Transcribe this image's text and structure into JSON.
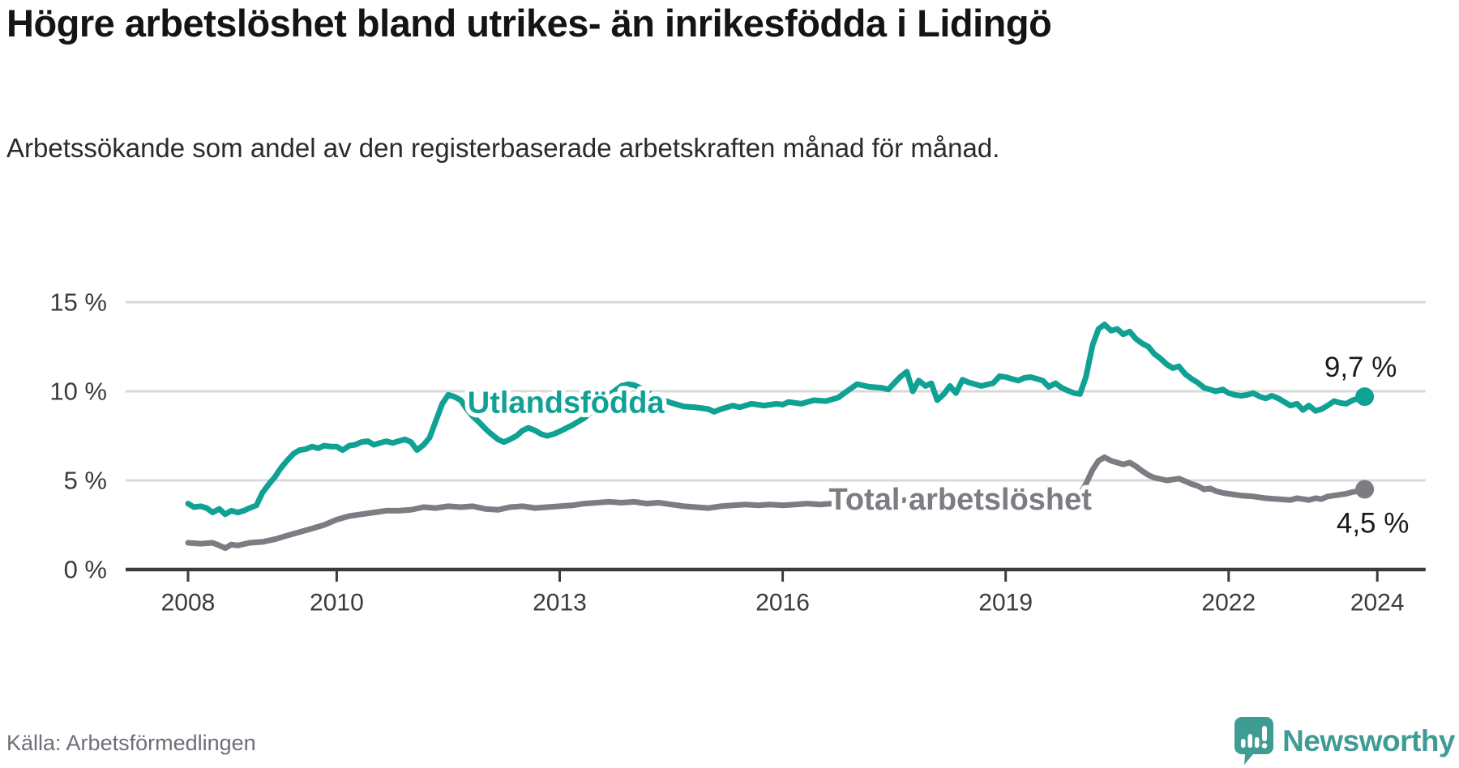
{
  "header": {
    "title": "Högre arbetslöshet bland utrikes- än inrikesfödda i Lidingö",
    "subtitle": "Arbetssökande som andel av den registerbaserade arbetskraften månad för månad."
  },
  "footer": {
    "source": "Källa: Arbetsförmedlingen",
    "brand": "Newsworthy"
  },
  "colors": {
    "teal": "#10a195",
    "gray": "#7c7c83",
    "axis": "#3b3b3b",
    "grid": "#d9d9d9",
    "tick_text": "#3b3b3b",
    "value_text": "#1a1a1a",
    "logo": "#3f9c95"
  },
  "chart_data": {
    "type": "line",
    "xlabel": "",
    "ylabel": "",
    "x_ticks": [
      2008,
      2010,
      2013,
      2016,
      2019,
      2022,
      2024
    ],
    "y_ticks": [
      0,
      5,
      10,
      15
    ],
    "y_tick_suffix": " %",
    "xlim": [
      2007.16,
      2024.65
    ],
    "ylim": [
      0,
      18.3
    ],
    "grid": "horizontal",
    "legend_position": "inline-labels",
    "series": [
      {
        "name": "Utlandsfödda",
        "color_key": "teal",
        "end_label": "9,7 %",
        "end_label_dx": -5,
        "end_label_dy": -36,
        "points": [
          [
            2008.0,
            3.7
          ],
          [
            2008.08,
            3.5
          ],
          [
            2008.17,
            3.55
          ],
          [
            2008.25,
            3.45
          ],
          [
            2008.33,
            3.2
          ],
          [
            2008.42,
            3.4
          ],
          [
            2008.5,
            3.1
          ],
          [
            2008.58,
            3.3
          ],
          [
            2008.67,
            3.2
          ],
          [
            2008.75,
            3.3
          ],
          [
            2008.83,
            3.45
          ],
          [
            2008.92,
            3.6
          ],
          [
            2009.0,
            4.3
          ],
          [
            2009.08,
            4.75
          ],
          [
            2009.17,
            5.2
          ],
          [
            2009.25,
            5.7
          ],
          [
            2009.33,
            6.1
          ],
          [
            2009.42,
            6.5
          ],
          [
            2009.5,
            6.7
          ],
          [
            2009.58,
            6.75
          ],
          [
            2009.67,
            6.9
          ],
          [
            2009.75,
            6.8
          ],
          [
            2009.83,
            6.95
          ],
          [
            2009.92,
            6.9
          ],
          [
            2010.0,
            6.9
          ],
          [
            2010.08,
            6.7
          ],
          [
            2010.17,
            6.95
          ],
          [
            2010.25,
            7.0
          ],
          [
            2010.33,
            7.15
          ],
          [
            2010.42,
            7.2
          ],
          [
            2010.5,
            7.0
          ],
          [
            2010.58,
            7.1
          ],
          [
            2010.67,
            7.2
          ],
          [
            2010.75,
            7.1
          ],
          [
            2010.83,
            7.2
          ],
          [
            2010.92,
            7.3
          ],
          [
            2011.0,
            7.15
          ],
          [
            2011.08,
            6.7
          ],
          [
            2011.17,
            7.0
          ],
          [
            2011.25,
            7.4
          ],
          [
            2011.33,
            8.3
          ],
          [
            2011.42,
            9.3
          ],
          [
            2011.5,
            9.8
          ],
          [
            2011.58,
            9.7
          ],
          [
            2011.67,
            9.5
          ],
          [
            2011.75,
            9.0
          ],
          [
            2011.83,
            8.6
          ],
          [
            2011.92,
            8.25
          ],
          [
            2012.0,
            7.9
          ],
          [
            2012.08,
            7.6
          ],
          [
            2012.17,
            7.3
          ],
          [
            2012.25,
            7.15
          ],
          [
            2012.33,
            7.3
          ],
          [
            2012.42,
            7.5
          ],
          [
            2012.5,
            7.8
          ],
          [
            2012.58,
            7.95
          ],
          [
            2012.67,
            7.8
          ],
          [
            2012.75,
            7.6
          ],
          [
            2012.83,
            7.5
          ],
          [
            2012.92,
            7.6
          ],
          [
            2013.0,
            7.75
          ],
          [
            2013.17,
            8.1
          ],
          [
            2013.33,
            8.5
          ],
          [
            2013.5,
            9.1
          ],
          [
            2013.67,
            9.8
          ],
          [
            2013.83,
            10.3
          ],
          [
            2013.92,
            10.4
          ],
          [
            2014.0,
            10.35
          ],
          [
            2014.08,
            10.2
          ],
          [
            2014.17,
            9.95
          ],
          [
            2014.33,
            9.6
          ],
          [
            2014.5,
            9.35
          ],
          [
            2014.67,
            9.15
          ],
          [
            2014.83,
            9.1
          ],
          [
            2015.0,
            9.0
          ],
          [
            2015.08,
            8.85
          ],
          [
            2015.17,
            9.0
          ],
          [
            2015.33,
            9.2
          ],
          [
            2015.42,
            9.1
          ],
          [
            2015.58,
            9.3
          ],
          [
            2015.75,
            9.2
          ],
          [
            2015.92,
            9.3
          ],
          [
            2016.0,
            9.25
          ],
          [
            2016.08,
            9.4
          ],
          [
            2016.25,
            9.3
          ],
          [
            2016.42,
            9.5
          ],
          [
            2016.58,
            9.45
          ],
          [
            2016.75,
            9.65
          ],
          [
            2016.83,
            9.9
          ],
          [
            2017.0,
            10.4
          ],
          [
            2017.17,
            10.25
          ],
          [
            2017.33,
            10.2
          ],
          [
            2017.42,
            10.1
          ],
          [
            2017.58,
            10.8
          ],
          [
            2017.67,
            11.1
          ],
          [
            2017.75,
            10.0
          ],
          [
            2017.83,
            10.6
          ],
          [
            2017.92,
            10.3
          ],
          [
            2018.0,
            10.45
          ],
          [
            2018.08,
            9.5
          ],
          [
            2018.17,
            9.85
          ],
          [
            2018.25,
            10.3
          ],
          [
            2018.33,
            9.9
          ],
          [
            2018.42,
            10.65
          ],
          [
            2018.5,
            10.5
          ],
          [
            2018.67,
            10.3
          ],
          [
            2018.83,
            10.45
          ],
          [
            2018.92,
            10.85
          ],
          [
            2019.0,
            10.8
          ],
          [
            2019.08,
            10.7
          ],
          [
            2019.17,
            10.6
          ],
          [
            2019.25,
            10.75
          ],
          [
            2019.33,
            10.8
          ],
          [
            2019.42,
            10.7
          ],
          [
            2019.5,
            10.6
          ],
          [
            2019.58,
            10.25
          ],
          [
            2019.67,
            10.45
          ],
          [
            2019.75,
            10.2
          ],
          [
            2019.83,
            10.05
          ],
          [
            2019.92,
            9.9
          ],
          [
            2020.0,
            9.85
          ],
          [
            2020.08,
            10.8
          ],
          [
            2020.17,
            12.6
          ],
          [
            2020.25,
            13.5
          ],
          [
            2020.33,
            13.75
          ],
          [
            2020.42,
            13.4
          ],
          [
            2020.5,
            13.5
          ],
          [
            2020.58,
            13.2
          ],
          [
            2020.67,
            13.35
          ],
          [
            2020.75,
            12.95
          ],
          [
            2020.83,
            12.7
          ],
          [
            2020.92,
            12.5
          ],
          [
            2021.0,
            12.1
          ],
          [
            2021.08,
            11.85
          ],
          [
            2021.17,
            11.5
          ],
          [
            2021.25,
            11.3
          ],
          [
            2021.33,
            11.4
          ],
          [
            2021.42,
            10.95
          ],
          [
            2021.5,
            10.7
          ],
          [
            2021.58,
            10.5
          ],
          [
            2021.67,
            10.2
          ],
          [
            2021.75,
            10.1
          ],
          [
            2021.83,
            10.0
          ],
          [
            2021.92,
            10.1
          ],
          [
            2022.0,
            9.9
          ],
          [
            2022.08,
            9.8
          ],
          [
            2022.17,
            9.75
          ],
          [
            2022.25,
            9.8
          ],
          [
            2022.33,
            9.9
          ],
          [
            2022.42,
            9.7
          ],
          [
            2022.5,
            9.6
          ],
          [
            2022.58,
            9.75
          ],
          [
            2022.67,
            9.6
          ],
          [
            2022.75,
            9.4
          ],
          [
            2022.83,
            9.2
          ],
          [
            2022.92,
            9.3
          ],
          [
            2023.0,
            8.95
          ],
          [
            2023.08,
            9.2
          ],
          [
            2023.17,
            8.9
          ],
          [
            2023.25,
            9.0
          ],
          [
            2023.33,
            9.2
          ],
          [
            2023.42,
            9.45
          ],
          [
            2023.5,
            9.35
          ],
          [
            2023.58,
            9.3
          ],
          [
            2023.67,
            9.5
          ],
          [
            2023.75,
            9.6
          ],
          [
            2023.83,
            9.7
          ]
        ]
      },
      {
        "name": "Total arbetslöshet",
        "color_key": "gray",
        "end_label": "4,5 %",
        "end_label_dx": 10,
        "end_label_dy": 42,
        "points": [
          [
            2008.0,
            1.5
          ],
          [
            2008.17,
            1.45
          ],
          [
            2008.33,
            1.5
          ],
          [
            2008.42,
            1.35
          ],
          [
            2008.5,
            1.2
          ],
          [
            2008.58,
            1.4
          ],
          [
            2008.67,
            1.35
          ],
          [
            2008.83,
            1.5
          ],
          [
            2009.0,
            1.55
          ],
          [
            2009.17,
            1.7
          ],
          [
            2009.33,
            1.9
          ],
          [
            2009.5,
            2.1
          ],
          [
            2009.67,
            2.3
          ],
          [
            2009.83,
            2.5
          ],
          [
            2010.0,
            2.8
          ],
          [
            2010.17,
            3.0
          ],
          [
            2010.33,
            3.1
          ],
          [
            2010.5,
            3.2
          ],
          [
            2010.67,
            3.3
          ],
          [
            2010.83,
            3.3
          ],
          [
            2011.0,
            3.35
          ],
          [
            2011.17,
            3.5
          ],
          [
            2011.33,
            3.45
          ],
          [
            2011.5,
            3.55
          ],
          [
            2011.67,
            3.5
          ],
          [
            2011.83,
            3.55
          ],
          [
            2012.0,
            3.4
          ],
          [
            2012.17,
            3.35
          ],
          [
            2012.33,
            3.5
          ],
          [
            2012.5,
            3.55
          ],
          [
            2012.67,
            3.45
          ],
          [
            2012.83,
            3.5
          ],
          [
            2013.0,
            3.55
          ],
          [
            2013.17,
            3.6
          ],
          [
            2013.33,
            3.7
          ],
          [
            2013.5,
            3.75
          ],
          [
            2013.67,
            3.8
          ],
          [
            2013.83,
            3.75
          ],
          [
            2014.0,
            3.8
          ],
          [
            2014.17,
            3.7
          ],
          [
            2014.33,
            3.75
          ],
          [
            2014.5,
            3.65
          ],
          [
            2014.67,
            3.55
          ],
          [
            2014.83,
            3.5
          ],
          [
            2015.0,
            3.45
          ],
          [
            2015.17,
            3.55
          ],
          [
            2015.33,
            3.6
          ],
          [
            2015.5,
            3.65
          ],
          [
            2015.67,
            3.6
          ],
          [
            2015.83,
            3.65
          ],
          [
            2016.0,
            3.6
          ],
          [
            2016.17,
            3.65
          ],
          [
            2016.33,
            3.7
          ],
          [
            2016.5,
            3.65
          ],
          [
            2016.67,
            3.7
          ],
          [
            2016.83,
            3.75
          ],
          [
            2017.0,
            3.8
          ],
          [
            2017.17,
            3.7
          ],
          [
            2017.33,
            3.75
          ],
          [
            2017.5,
            3.85
          ],
          [
            2017.67,
            3.9
          ],
          [
            2017.83,
            3.85
          ],
          [
            2018.0,
            3.95
          ],
          [
            2018.17,
            3.9
          ],
          [
            2018.33,
            4.0
          ],
          [
            2018.5,
            3.95
          ],
          [
            2018.67,
            4.0
          ],
          [
            2018.83,
            4.05
          ],
          [
            2019.0,
            4.0
          ],
          [
            2019.17,
            4.05
          ],
          [
            2019.33,
            4.0
          ],
          [
            2019.5,
            4.05
          ],
          [
            2019.67,
            4.0
          ],
          [
            2019.83,
            3.95
          ],
          [
            2020.0,
            4.2
          ],
          [
            2020.08,
            4.8
          ],
          [
            2020.17,
            5.6
          ],
          [
            2020.25,
            6.1
          ],
          [
            2020.33,
            6.3
          ],
          [
            2020.42,
            6.1
          ],
          [
            2020.5,
            6.0
          ],
          [
            2020.58,
            5.9
          ],
          [
            2020.67,
            6.0
          ],
          [
            2020.75,
            5.8
          ],
          [
            2020.83,
            5.55
          ],
          [
            2020.92,
            5.3
          ],
          [
            2021.0,
            5.15
          ],
          [
            2021.17,
            5.0
          ],
          [
            2021.33,
            5.1
          ],
          [
            2021.42,
            4.95
          ],
          [
            2021.5,
            4.8
          ],
          [
            2021.58,
            4.7
          ],
          [
            2021.67,
            4.5
          ],
          [
            2021.75,
            4.55
          ],
          [
            2021.83,
            4.4
          ],
          [
            2021.92,
            4.3
          ],
          [
            2022.0,
            4.25
          ],
          [
            2022.17,
            4.15
          ],
          [
            2022.33,
            4.1
          ],
          [
            2022.5,
            4.0
          ],
          [
            2022.67,
            3.95
          ],
          [
            2022.83,
            3.9
          ],
          [
            2022.92,
            4.0
          ],
          [
            2023.0,
            3.95
          ],
          [
            2023.08,
            3.9
          ],
          [
            2023.17,
            4.0
          ],
          [
            2023.25,
            3.95
          ],
          [
            2023.33,
            4.1
          ],
          [
            2023.42,
            4.15
          ],
          [
            2023.5,
            4.2
          ],
          [
            2023.58,
            4.25
          ],
          [
            2023.67,
            4.35
          ],
          [
            2023.75,
            4.4
          ],
          [
            2023.83,
            4.5
          ]
        ]
      }
    ],
    "annotations": [
      {
        "text": "Utlandsfödda",
        "x": 2011.76,
        "y": 9.35,
        "anchor": "start",
        "color_key": "teal"
      },
      {
        "text": "Total arbetslöshet",
        "x": 2016.62,
        "y": 3.9,
        "anchor": "start",
        "color_key": "gray"
      }
    ]
  }
}
